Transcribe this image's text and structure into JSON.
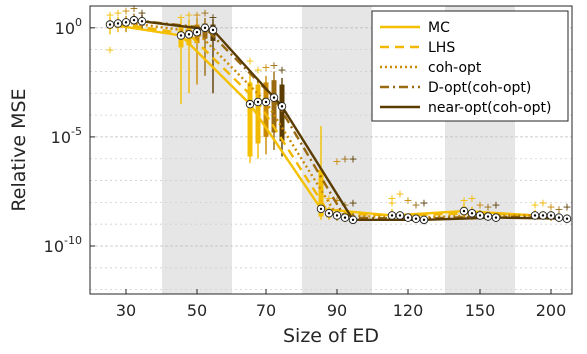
{
  "chart_data": {
    "type": "box",
    "xlabel": "Size of ED",
    "ylabel": "Relative MSE",
    "x_ticks": [
      "30",
      "50",
      "70",
      "90",
      "120",
      "150",
      "200"
    ],
    "y_ticks": [
      {
        "value": 0,
        "base": "10",
        "exp": "0"
      },
      {
        "value": -5,
        "base": "10",
        "exp": "-5"
      },
      {
        "value": -10,
        "base": "10",
        "exp": "-10"
      }
    ],
    "y_scale": "log",
    "ylim_log10": [
      -12.2,
      1.0
    ],
    "grid": "horizontal-dashed",
    "shaded_groups": [
      "50",
      "90",
      "150"
    ],
    "legend_position": "top-right",
    "series": [
      {
        "name": "MC",
        "color": "#f5c000",
        "dash": "solid",
        "median_log10": [
          0.15,
          -0.35,
          -3.5,
          -8.3,
          -8.6,
          -8.4,
          -8.6
        ],
        "q1_log10": [
          -0.05,
          -0.9,
          -5.9,
          -8.65,
          -8.75,
          -8.6,
          -8.7
        ],
        "q3_log10": [
          0.3,
          0.1,
          -2.5,
          -6.5,
          -8.45,
          -8.2,
          -8.5
        ],
        "wlo_log10": [
          -0.3,
          -3.5,
          -6.2,
          -8.8,
          -8.85,
          -8.75,
          -8.8
        ],
        "whi_log10": [
          0.5,
          0.4,
          -2.1,
          -4.5,
          -8.3,
          -8.05,
          -8.35
        ],
        "outliers_log10": [
          [
            0.6,
            -1.0
          ],
          [
            0.5
          ],
          [
            -1.5
          ],
          [
            -8.0
          ],
          [
            -7.8,
            -8.0
          ],
          [
            -7.9
          ],
          [
            -8.1
          ]
        ]
      },
      {
        "name": "LHS",
        "color": "#f2b800",
        "dash": "dash",
        "median_log10": [
          0.2,
          -0.3,
          -3.4,
          -8.5,
          -8.6,
          -8.5,
          -8.6
        ],
        "q1_log10": [
          0.0,
          -0.8,
          -5.3,
          -8.7,
          -8.75,
          -8.65,
          -8.7
        ],
        "q3_log10": [
          0.35,
          0.1,
          -2.6,
          -8.35,
          -8.5,
          -8.35,
          -8.5
        ],
        "wlo_log10": [
          -0.2,
          -3.0,
          -6.0,
          -8.8,
          -8.85,
          -8.8,
          -8.8
        ],
        "whi_log10": [
          0.5,
          0.4,
          -2.3,
          -8.2,
          -8.4,
          -8.2,
          -8.4
        ],
        "outliers_log10": [
          [
            0.7
          ],
          [
            0.6
          ],
          [
            -1.9
          ],
          [
            -7.8
          ],
          [
            -7.6
          ],
          [
            -7.8
          ],
          [
            -8.0
          ]
        ]
      },
      {
        "name": "coh-opt",
        "color": "#c98a00",
        "dash": "dot",
        "median_log10": [
          0.25,
          -0.2,
          -3.4,
          -8.6,
          -8.7,
          -8.6,
          -8.6
        ],
        "q1_log10": [
          0.05,
          -0.7,
          -5.0,
          -8.75,
          -8.8,
          -8.7,
          -8.75
        ],
        "q3_log10": [
          0.4,
          0.15,
          -2.5,
          -8.45,
          -8.6,
          -8.5,
          -8.5
        ],
        "wlo_log10": [
          -0.2,
          -2.6,
          -5.8,
          -8.85,
          -8.9,
          -8.8,
          -8.85
        ],
        "whi_log10": [
          0.55,
          0.45,
          -2.2,
          -8.3,
          -8.5,
          -8.35,
          -8.4
        ],
        "outliers_log10": [
          [
            0.8
          ],
          [
            0.6
          ],
          [
            -1.8
          ],
          [
            -6.1,
            -7.9
          ],
          [
            -7.9
          ],
          [
            -8.1
          ],
          [
            -8.2
          ]
        ]
      },
      {
        "name": "D-opt(coh-opt)",
        "color": "#9a6a10",
        "dash": "dashdot",
        "median_log10": [
          0.35,
          0.0,
          -3.2,
          -8.7,
          -8.75,
          -8.65,
          -8.7
        ],
        "q1_log10": [
          0.15,
          -0.5,
          -4.8,
          -8.8,
          -8.85,
          -8.75,
          -8.8
        ],
        "q3_log10": [
          0.5,
          0.2,
          -2.4,
          -8.55,
          -8.65,
          -8.55,
          -8.6
        ],
        "wlo_log10": [
          0.0,
          -2.2,
          -5.6,
          -8.9,
          -8.95,
          -8.85,
          -8.9
        ],
        "whi_log10": [
          0.65,
          0.45,
          -2.0,
          -8.4,
          -8.55,
          -8.45,
          -8.5
        ],
        "outliers_log10": [
          [
            0.9
          ],
          [
            0.7
          ],
          [
            -1.7
          ],
          [
            -6.0,
            -8.1
          ],
          [
            -8.1
          ],
          [
            -8.2
          ],
          [
            -8.3
          ]
        ]
      },
      {
        "name": "near-opt(coh-opt)",
        "color": "#5a3c00",
        "dash": "solid",
        "median_log10": [
          0.3,
          -0.1,
          -3.6,
          -8.8,
          -8.8,
          -8.7,
          -8.75
        ],
        "q1_log10": [
          0.1,
          -0.6,
          -5.2,
          -8.9,
          -8.9,
          -8.8,
          -8.85
        ],
        "q3_log10": [
          0.45,
          0.15,
          -2.6,
          -8.65,
          -8.7,
          -8.6,
          -8.65
        ],
        "wlo_log10": [
          -0.1,
          -3.0,
          -5.9,
          -8.95,
          -9.0,
          -8.9,
          -8.95
        ],
        "whi_log10": [
          0.6,
          0.4,
          -2.3,
          -8.5,
          -8.6,
          -8.5,
          -8.55
        ],
        "outliers_log10": [
          [
            0.7
          ],
          [
            0.5
          ],
          [
            -1.9
          ],
          [
            -6.0,
            -8.0
          ],
          [
            -8.0
          ],
          [
            -8.1
          ],
          [
            -8.2
          ]
        ]
      }
    ]
  }
}
